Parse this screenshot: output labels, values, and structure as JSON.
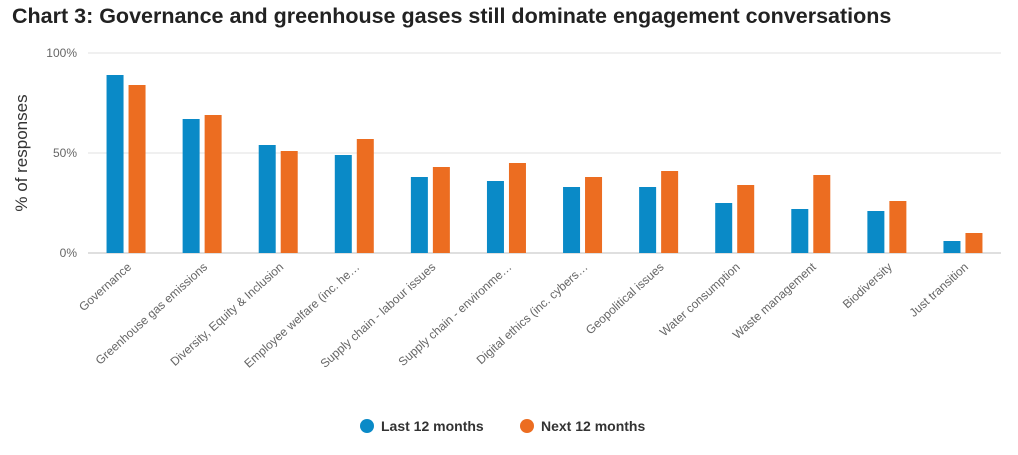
{
  "title": "Chart 3: Governance and greenhouse gases still dominate engagement conversations",
  "chart_data": {
    "type": "bar",
    "ylabel": "% of responses",
    "xlabel": "",
    "ylim": [
      0,
      100
    ],
    "yticks": [
      {
        "value": 0,
        "label": "0%"
      },
      {
        "value": 50,
        "label": "50%"
      },
      {
        "value": 100,
        "label": "100%"
      }
    ],
    "grid": true,
    "legend_position": "bottom",
    "categories": [
      "Governance",
      "Greenhouse gas emissions",
      "Diversity, Equity & Inclusion",
      "Employee welfare (inc. he…",
      "Supply chain - labour issues",
      "Supply chain - environme…",
      "Digital ethics (inc. cybers…",
      "Geopolitical issues",
      "Water consumption",
      "Waste management",
      "Biodiversity",
      "Just transition"
    ],
    "series": [
      {
        "name": "Last 12 months",
        "color": "#0a8ac7",
        "values": [
          89,
          67,
          54,
          49,
          38,
          36,
          33,
          33,
          25,
          22,
          21,
          6
        ]
      },
      {
        "name": "Next 12 months",
        "color": "#ec6d21",
        "values": [
          84,
          69,
          51,
          57,
          43,
          45,
          38,
          41,
          34,
          39,
          26,
          10
        ]
      }
    ]
  }
}
